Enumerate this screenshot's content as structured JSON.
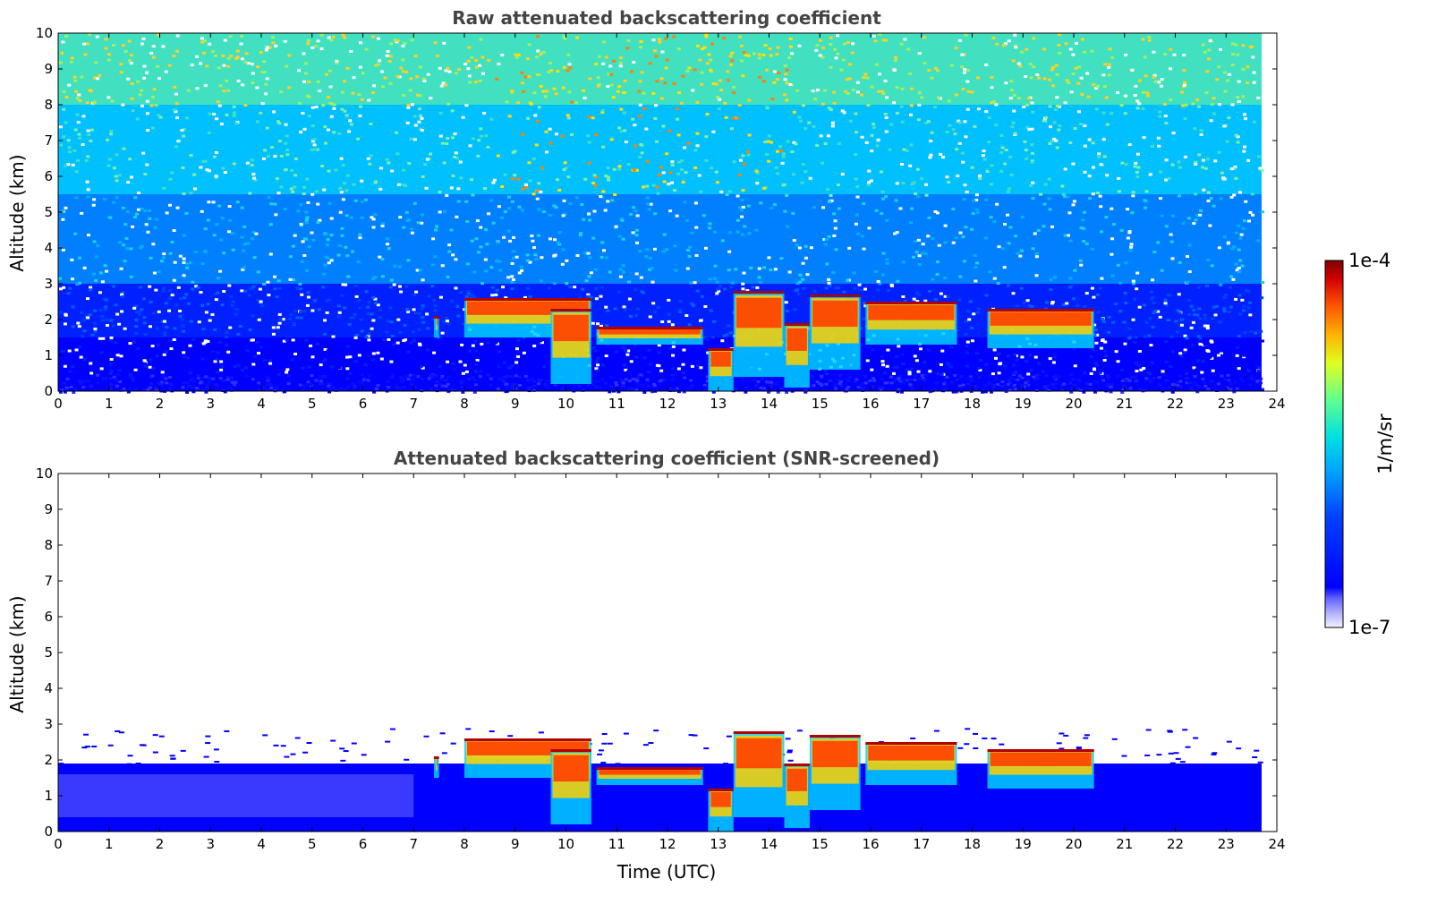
{
  "chart_data": [
    {
      "type": "heatmap",
      "title": "Raw attenuated backscattering coefficient",
      "xlabel": "",
      "ylabel": "Altitude (km)",
      "xlim": [
        0,
        24
      ],
      "ylim": [
        0,
        10
      ],
      "xticks": [
        "0",
        "1",
        "2",
        "3",
        "4",
        "5",
        "6",
        "7",
        "8",
        "9",
        "10",
        "11",
        "12",
        "13",
        "14",
        "15",
        "16",
        "17",
        "18",
        "19",
        "20",
        "21",
        "22",
        "23",
        "24"
      ],
      "yticks": [
        "0",
        "1",
        "2",
        "3",
        "4",
        "5",
        "6",
        "7",
        "8",
        "9",
        "10"
      ],
      "data_extent_x": [
        0,
        23.7
      ],
      "grid": false,
      "noise_screened": false,
      "cloud_layers": [
        {
          "t_start": 7.4,
          "t_end": 7.5,
          "base_km": 1.5,
          "top_km": 2.1
        },
        {
          "t_start": 8.0,
          "t_end": 10.5,
          "base_km": 1.5,
          "top_km": 2.6
        },
        {
          "t_start": 9.7,
          "t_end": 10.5,
          "base_km": 0.2,
          "top_km": 2.3
        },
        {
          "t_start": 10.6,
          "t_end": 12.7,
          "base_km": 1.3,
          "top_km": 1.8
        },
        {
          "t_start": 12.8,
          "t_end": 13.3,
          "base_km": 0.0,
          "top_km": 1.2
        },
        {
          "t_start": 13.3,
          "t_end": 14.3,
          "base_km": 0.4,
          "top_km": 2.8
        },
        {
          "t_start": 14.3,
          "t_end": 14.8,
          "base_km": 0.1,
          "top_km": 1.9
        },
        {
          "t_start": 14.8,
          "t_end": 15.8,
          "base_km": 0.6,
          "top_km": 2.7
        },
        {
          "t_start": 15.9,
          "t_end": 17.7,
          "base_km": 1.3,
          "top_km": 2.5
        },
        {
          "t_start": 18.3,
          "t_end": 20.4,
          "base_km": 1.2,
          "top_km": 2.3
        }
      ]
    },
    {
      "type": "heatmap",
      "title": "Attenuated backscattering coefficient (SNR-screened)",
      "xlabel": "Time (UTC)",
      "ylabel": "Altitude (km)",
      "xlim": [
        0,
        24
      ],
      "ylim": [
        0,
        10
      ],
      "xticks": [
        "0",
        "1",
        "2",
        "3",
        "4",
        "5",
        "6",
        "7",
        "8",
        "9",
        "10",
        "11",
        "12",
        "13",
        "14",
        "15",
        "16",
        "17",
        "18",
        "19",
        "20",
        "21",
        "22",
        "23",
        "24"
      ],
      "yticks": [
        "0",
        "1",
        "2",
        "3",
        "4",
        "5",
        "6",
        "7",
        "8",
        "9",
        "10"
      ],
      "data_extent_x": [
        0,
        23.7
      ],
      "grid": false,
      "noise_screened": true,
      "boundary_layer_top_km": 1.9,
      "cloud_layers": [
        {
          "t_start": 7.4,
          "t_end": 7.5,
          "base_km": 1.5,
          "top_km": 2.1
        },
        {
          "t_start": 8.0,
          "t_end": 10.5,
          "base_km": 1.5,
          "top_km": 2.6
        },
        {
          "t_start": 9.7,
          "t_end": 10.5,
          "base_km": 0.2,
          "top_km": 2.3
        },
        {
          "t_start": 10.6,
          "t_end": 12.7,
          "base_km": 1.3,
          "top_km": 1.8
        },
        {
          "t_start": 12.8,
          "t_end": 13.3,
          "base_km": 0.0,
          "top_km": 1.2
        },
        {
          "t_start": 13.3,
          "t_end": 14.3,
          "base_km": 0.4,
          "top_km": 2.8
        },
        {
          "t_start": 14.3,
          "t_end": 14.8,
          "base_km": 0.1,
          "top_km": 1.9
        },
        {
          "t_start": 14.8,
          "t_end": 15.8,
          "base_km": 0.6,
          "top_km": 2.7
        },
        {
          "t_start": 15.9,
          "t_end": 17.7,
          "base_km": 1.3,
          "top_km": 2.5
        },
        {
          "t_start": 18.3,
          "t_end": 20.4,
          "base_km": 1.2,
          "top_km": 2.3
        }
      ]
    }
  ],
  "colorbar": {
    "label": "1/m/sr",
    "max_label": "1e-4",
    "min_label": "1e-7",
    "scale": "log",
    "range": [
      1e-07,
      0.0001
    ],
    "colormap": "jet",
    "colors": [
      "#f0f0ff",
      "#b8b8ff",
      "#7070ff",
      "#0000ff",
      "#0060ff",
      "#00c0ff",
      "#20e0c0",
      "#80ff80",
      "#e0ff20",
      "#ffc000",
      "#ff6000",
      "#e01000",
      "#800000"
    ]
  }
}
